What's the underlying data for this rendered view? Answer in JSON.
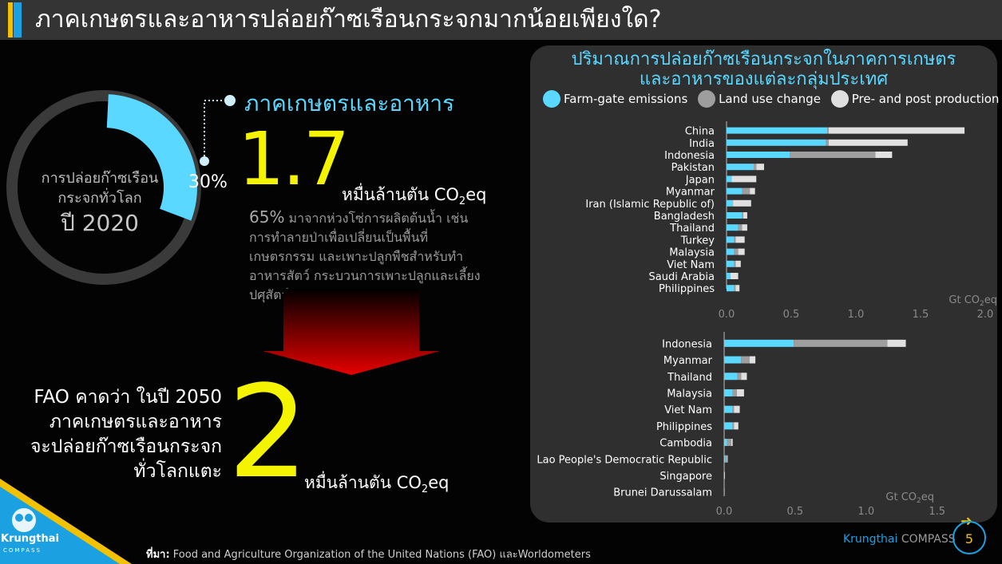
{
  "header": {
    "title": "ภาคเกษตรและอาหารปล่อยก๊าซเรือนกระจกมากน้อยเพียงใด?"
  },
  "donut": {
    "line1": "การปล่อยก๊าซเรือน",
    "line2": "กระจกทั่วโลก",
    "line3": "ปี 2020",
    "share_value": 30,
    "share_label": "30%",
    "color_share": "#5ad8ff",
    "color_rest": "#3a3a3a"
  },
  "agri": {
    "title": "ภาคเกษตรและอาหาร",
    "value": "1.7",
    "unit_prefix": "หมื่นล้านตัน CO",
    "unit_sub": "2",
    "unit_suffix": "eq",
    "desc_pct": "65%",
    "desc_text": " มาจากห่วงโซ่การผลิตต้นน้ำ เช่น การทำลายป่าเพื่อเปลี่ยนเป็นพื้นที่เกษตรกรรม และเพาะปลูกพืชสำหรับทำอาหารสัตว์ กระบวนการเพาะปลูกและเลี้ยงปศุสัตว์"
  },
  "projection": {
    "text_lines": [
      "FAO คาดว่า ในปี 2050",
      "ภาคเกษตรและอาหาร",
      "จะปล่อยก๊าซเรือนกระจก",
      "ทั่วโลกแตะ"
    ],
    "value": "2",
    "unit_prefix": "หมื่นล้านตัน CO",
    "unit_sub": "2",
    "unit_suffix": "eq"
  },
  "panel": {
    "title_line1": "ปริมาณการปล่อยก๊าซเรือนกระจกในภาคการเกษตร",
    "title_line2": "และอาหารของแต่ละกลุ่มประเทศ"
  },
  "chart_data": [
    {
      "type": "bar",
      "orientation": "horizontal",
      "stacked": true,
      "categories": [
        "China",
        "India",
        "Indonesia",
        "Pakistan",
        "Japan",
        "Myanmar",
        "Iran (Islamic Republic of)",
        "Bangladesh",
        "Thailand",
        "Turkey",
        "Malaysia",
        "Viet Nam",
        "Saudi Arabia",
        "Philippines"
      ],
      "series": [
        {
          "name": "Farm-gate emissions",
          "color": "#5ad8ff",
          "values": [
            0.78,
            0.77,
            0.49,
            0.21,
            0.04,
            0.12,
            0.05,
            0.12,
            0.09,
            0.06,
            0.06,
            0.06,
            0.03,
            0.06
          ]
        },
        {
          "name": "Land use change",
          "color": "#9e9e9e",
          "values": [
            0.01,
            0.02,
            0.66,
            0.02,
            0.0,
            0.06,
            0.0,
            0.01,
            0.03,
            0.01,
            0.03,
            0.01,
            0.0,
            0.01
          ]
        },
        {
          "name": "Pre- and post production",
          "color": "#e0e0e0",
          "values": [
            1.05,
            0.61,
            0.13,
            0.06,
            0.19,
            0.04,
            0.14,
            0.03,
            0.04,
            0.07,
            0.05,
            0.04,
            0.06,
            0.03
          ]
        }
      ],
      "xlim": [
        0,
        2.0
      ],
      "xticks": [
        "0.0",
        "0.5",
        "1.0",
        "1.5",
        "2.0"
      ],
      "xlabel_prefix": "Gt CO",
      "xlabel_sub": "2",
      "xlabel_suffix": "eq"
    },
    {
      "type": "bar",
      "orientation": "horizontal",
      "stacked": true,
      "categories": [
        "Indonesia",
        "Myanmar",
        "Thailand",
        "Malaysia",
        "Viet Nam",
        "Philippines",
        "Cambodia",
        "Lao People's Democratic Republic",
        "Singapore",
        "Brunei Darussalam"
      ],
      "series": [
        {
          "name": "Farm-gate emissions",
          "color": "#5ad8ff",
          "values": [
            0.49,
            0.12,
            0.09,
            0.06,
            0.06,
            0.06,
            0.02,
            0.01,
            0.0,
            0.0
          ]
        },
        {
          "name": "Land use change",
          "color": "#9e9e9e",
          "values": [
            0.66,
            0.06,
            0.03,
            0.03,
            0.01,
            0.01,
            0.03,
            0.01,
            0.0,
            0.0
          ]
        },
        {
          "name": "Pre- and post production",
          "color": "#e0e0e0",
          "values": [
            0.13,
            0.04,
            0.04,
            0.05,
            0.04,
            0.03,
            0.01,
            0.005,
            0.005,
            0.003
          ]
        }
      ],
      "xlim": [
        0,
        1.8
      ],
      "xticks": [
        "0.0",
        "0.5",
        "1.0",
        "1.5"
      ],
      "xlabel_prefix": "Gt CO",
      "xlabel_sub": "2",
      "xlabel_suffix": "eq"
    }
  ],
  "legend": [
    {
      "label": "Farm-gate emissions",
      "color": "#5ad8ff"
    },
    {
      "label": "Land use change",
      "color": "#9e9e9e"
    },
    {
      "label": "Pre- and post production",
      "color": "#e0e0e0"
    }
  ],
  "footer": {
    "logo_text": "Krungthai",
    "logo_sub": "COMPASS",
    "source_label": "ที่มา:",
    "source_text": " Food and Agriculture Organization of the United Nations (FAO) และWorldometers",
    "brand_a": "Krungthai ",
    "brand_b": "COMPASS",
    "page": "5"
  }
}
